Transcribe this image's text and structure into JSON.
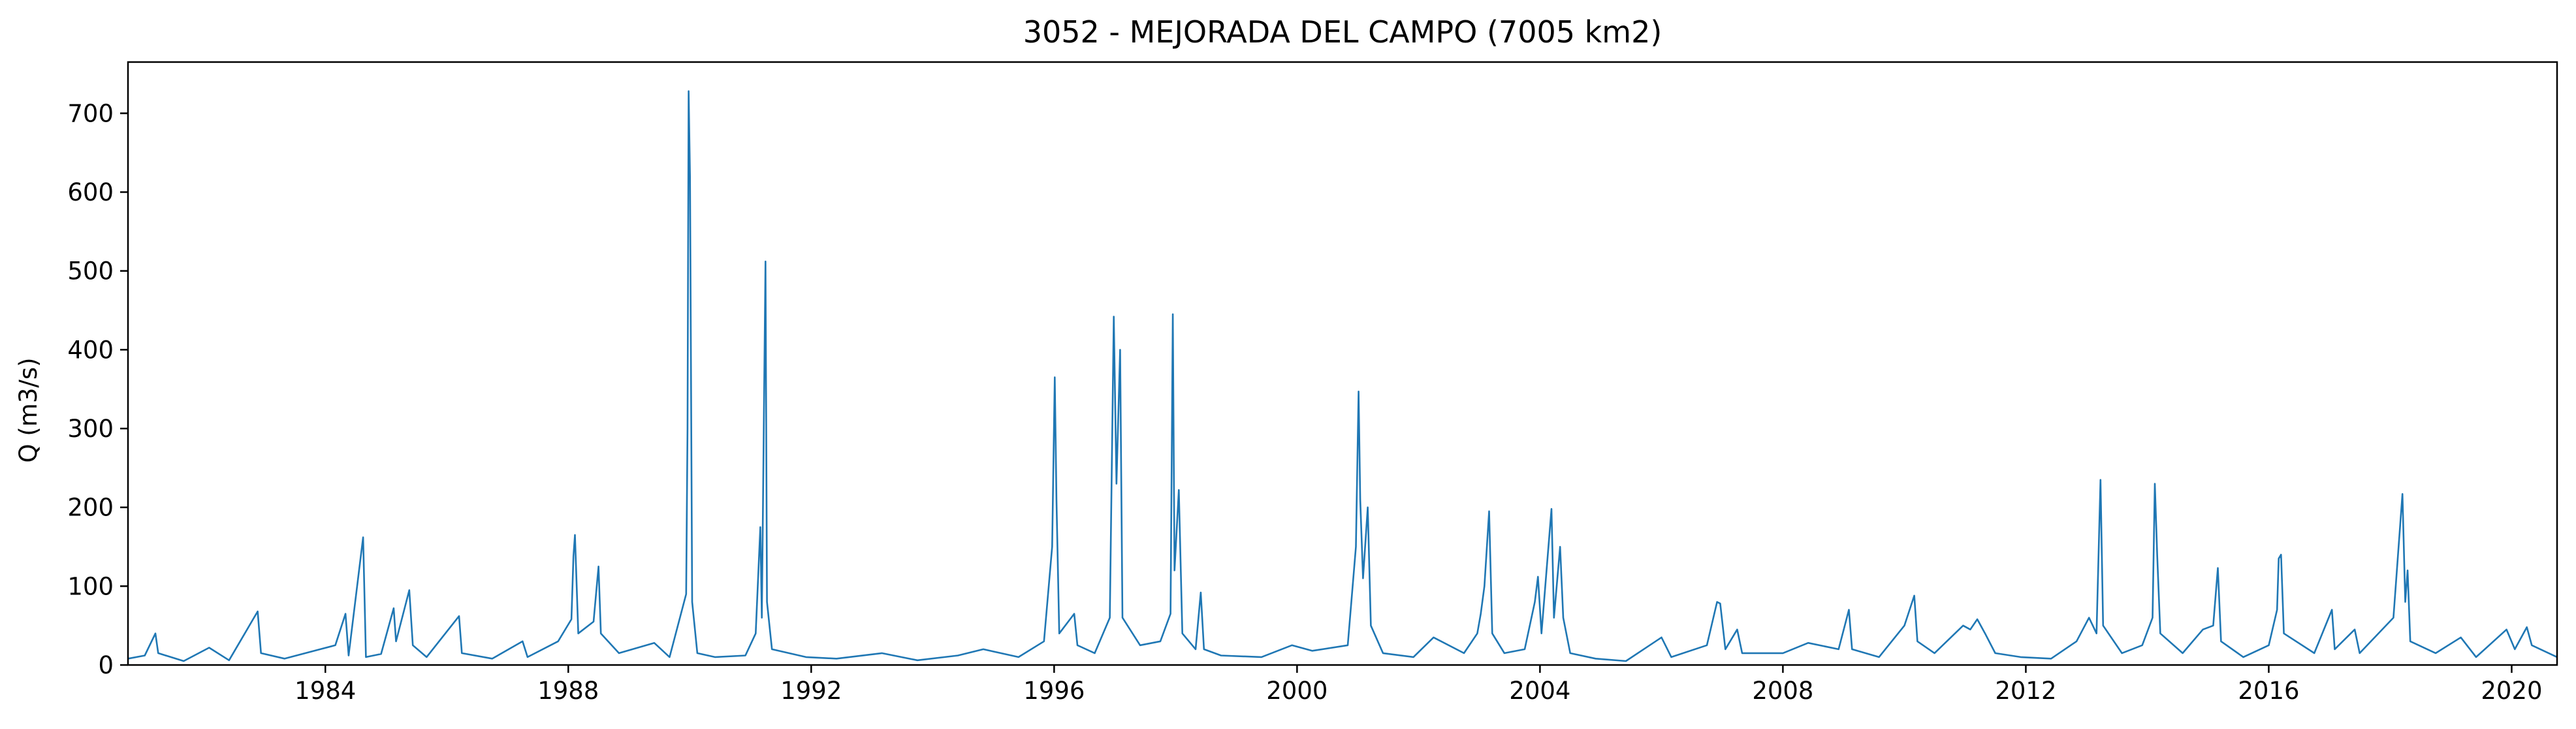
{
  "chart_data": {
    "type": "line",
    "title": "3052 - MEJORADA DEL CAMPO (7005 km2)",
    "xlabel": "",
    "ylabel": "Q (m3/s)",
    "xlim": [
      "1980-10-01",
      "2020-09-30"
    ],
    "ylim": [
      0,
      765
    ],
    "grid": false,
    "x_ticks": [
      "1984",
      "1988",
      "1992",
      "1996",
      "2000",
      "2004",
      "2008",
      "2012",
      "2016",
      "2020"
    ],
    "y_ticks": [
      0,
      100,
      200,
      300,
      400,
      500,
      600,
      700
    ],
    "colors": {
      "series": "#1f77b4"
    },
    "series": [
      {
        "values": [
          [
            "1980-10-01",
            8
          ],
          [
            "1981-01-10",
            12
          ],
          [
            "1981-03-15",
            40
          ],
          [
            "1981-04-01",
            15
          ],
          [
            "1981-09-01",
            5
          ],
          [
            "1982-02-01",
            22
          ],
          [
            "1982-06-01",
            6
          ],
          [
            "1982-11-20",
            68
          ],
          [
            "1982-12-10",
            15
          ],
          [
            "1983-05-01",
            8
          ],
          [
            "1983-12-01",
            20
          ],
          [
            "1984-03-01",
            25
          ],
          [
            "1984-05-01",
            65
          ],
          [
            "1984-05-20",
            12
          ],
          [
            "1984-08-15",
            162
          ],
          [
            "1984-09-01",
            10
          ],
          [
            "1984-12-01",
            14
          ],
          [
            "1985-02-15",
            72
          ],
          [
            "1985-03-01",
            30
          ],
          [
            "1985-05-20",
            95
          ],
          [
            "1985-06-10",
            25
          ],
          [
            "1985-09-01",
            10
          ],
          [
            "1986-03-15",
            62
          ],
          [
            "1986-04-01",
            15
          ],
          [
            "1986-10-01",
            8
          ],
          [
            "1987-04-01",
            30
          ],
          [
            "1987-05-01",
            10
          ],
          [
            "1987-11-01",
            30
          ],
          [
            "1988-01-20",
            58
          ],
          [
            "1988-02-01",
            138
          ],
          [
            "1988-02-10",
            165
          ],
          [
            "1988-03-01",
            40
          ],
          [
            "1988-06-01",
            55
          ],
          [
            "1988-07-01",
            125
          ],
          [
            "1988-07-15",
            40
          ],
          [
            "1988-11-01",
            15
          ],
          [
            "1989-06-01",
            28
          ],
          [
            "1989-09-01",
            10
          ],
          [
            "1989-12-10",
            90
          ],
          [
            "1989-12-18",
            300
          ],
          [
            "1989-12-25",
            728
          ],
          [
            "1990-01-02",
            620
          ],
          [
            "1990-01-15",
            80
          ],
          [
            "1990-02-15",
            15
          ],
          [
            "1990-06-01",
            10
          ],
          [
            "1990-12-01",
            12
          ],
          [
            "1991-02-01",
            40
          ],
          [
            "1991-03-01",
            175
          ],
          [
            "1991-03-10",
            60
          ],
          [
            "1991-04-01",
            512
          ],
          [
            "1991-04-10",
            80
          ],
          [
            "1991-05-10",
            20
          ],
          [
            "1991-12-01",
            10
          ],
          [
            "1992-06-01",
            8
          ],
          [
            "1993-03-01",
            15
          ],
          [
            "1993-10-01",
            6
          ],
          [
            "1994-06-01",
            12
          ],
          [
            "1994-11-01",
            20
          ],
          [
            "1995-06-01",
            10
          ],
          [
            "1995-11-01",
            30
          ],
          [
            "1995-12-20",
            150
          ],
          [
            "1996-01-05",
            365
          ],
          [
            "1996-01-15",
            210
          ],
          [
            "1996-02-01",
            40
          ],
          [
            "1996-05-01",
            65
          ],
          [
            "1996-05-20",
            25
          ],
          [
            "1996-09-01",
            15
          ],
          [
            "1996-12-01",
            60
          ],
          [
            "1996-12-25",
            442
          ],
          [
            "1997-01-10",
            230
          ],
          [
            "1997-02-01",
            400
          ],
          [
            "1997-02-15",
            60
          ],
          [
            "1997-06-01",
            25
          ],
          [
            "1997-10-01",
            30
          ],
          [
            "1997-12-01",
            65
          ],
          [
            "1997-12-15",
            445
          ],
          [
            "1997-12-25",
            120
          ],
          [
            "1998-01-20",
            222
          ],
          [
            "1998-02-10",
            40
          ],
          [
            "1998-05-01",
            20
          ],
          [
            "1998-06-01",
            92
          ],
          [
            "1998-06-20",
            20
          ],
          [
            "1998-10-01",
            12
          ],
          [
            "1999-06-01",
            10
          ],
          [
            "1999-12-01",
            25
          ],
          [
            "2000-04-01",
            18
          ],
          [
            "2000-11-01",
            25
          ],
          [
            "2000-12-20",
            150
          ],
          [
            "2001-01-05",
            347
          ],
          [
            "2001-01-15",
            210
          ],
          [
            "2001-02-01",
            110
          ],
          [
            "2001-03-01",
            200
          ],
          [
            "2001-03-20",
            50
          ],
          [
            "2001-06-01",
            15
          ],
          [
            "2001-12-01",
            10
          ],
          [
            "2002-04-01",
            35
          ],
          [
            "2002-10-01",
            15
          ],
          [
            "2002-12-20",
            40
          ],
          [
            "2003-01-10",
            65
          ],
          [
            "2003-02-01",
            100
          ],
          [
            "2003-03-01",
            195
          ],
          [
            "2003-03-20",
            40
          ],
          [
            "2003-06-01",
            15
          ],
          [
            "2003-10-01",
            20
          ],
          [
            "2003-12-01",
            80
          ],
          [
            "2003-12-20",
            112
          ],
          [
            "2004-01-10",
            40
          ],
          [
            "2004-03-10",
            198
          ],
          [
            "2004-03-25",
            60
          ],
          [
            "2004-05-01",
            150
          ],
          [
            "2004-05-20",
            60
          ],
          [
            "2004-07-01",
            15
          ],
          [
            "2004-12-01",
            8
          ],
          [
            "2005-06-01",
            5
          ],
          [
            "2006-01-01",
            35
          ],
          [
            "2006-03-01",
            10
          ],
          [
            "2006-10-01",
            25
          ],
          [
            "2006-12-01",
            80
          ],
          [
            "2006-12-20",
            78
          ],
          [
            "2007-01-20",
            20
          ],
          [
            "2007-04-01",
            45
          ],
          [
            "2007-05-01",
            15
          ],
          [
            "2008-01-01",
            15
          ],
          [
            "2008-06-01",
            28
          ],
          [
            "2008-12-01",
            20
          ],
          [
            "2009-02-01",
            70
          ],
          [
            "2009-02-20",
            20
          ],
          [
            "2009-08-01",
            10
          ],
          [
            "2010-01-01",
            50
          ],
          [
            "2010-03-01",
            88
          ],
          [
            "2010-03-20",
            30
          ],
          [
            "2010-07-01",
            15
          ],
          [
            "2010-12-20",
            50
          ],
          [
            "2011-02-01",
            45
          ],
          [
            "2011-03-15",
            58
          ],
          [
            "2011-05-01",
            40
          ],
          [
            "2011-07-01",
            15
          ],
          [
            "2011-12-01",
            10
          ],
          [
            "2012-06-01",
            8
          ],
          [
            "2012-11-01",
            30
          ],
          [
            "2013-01-15",
            60
          ],
          [
            "2013-03-01",
            40
          ],
          [
            "2013-03-25",
            235
          ],
          [
            "2013-04-10",
            50
          ],
          [
            "2013-08-01",
            15
          ],
          [
            "2013-12-01",
            25
          ],
          [
            "2014-02-01",
            60
          ],
          [
            "2014-02-15",
            230
          ],
          [
            "2014-03-01",
            140
          ],
          [
            "2014-03-20",
            40
          ],
          [
            "2014-08-01",
            15
          ],
          [
            "2014-12-01",
            45
          ],
          [
            "2015-02-01",
            50
          ],
          [
            "2015-03-01",
            123
          ],
          [
            "2015-03-20",
            30
          ],
          [
            "2015-08-01",
            10
          ],
          [
            "2016-01-01",
            25
          ],
          [
            "2016-02-20",
            70
          ],
          [
            "2016-03-01",
            135
          ],
          [
            "2016-03-15",
            140
          ],
          [
            "2016-04-01",
            40
          ],
          [
            "2016-10-01",
            15
          ],
          [
            "2017-01-15",
            70
          ],
          [
            "2017-02-01",
            20
          ],
          [
            "2017-06-01",
            45
          ],
          [
            "2017-07-01",
            15
          ],
          [
            "2018-01-20",
            60
          ],
          [
            "2018-03-15",
            217
          ],
          [
            "2018-04-01",
            80
          ],
          [
            "2018-04-15",
            120
          ],
          [
            "2018-05-01",
            30
          ],
          [
            "2018-10-01",
            15
          ],
          [
            "2019-03-01",
            35
          ],
          [
            "2019-06-01",
            10
          ],
          [
            "2019-12-01",
            45
          ],
          [
            "2020-01-20",
            20
          ],
          [
            "2020-04-01",
            48
          ],
          [
            "2020-05-01",
            25
          ],
          [
            "2020-09-30",
            10
          ]
        ]
      }
    ]
  }
}
